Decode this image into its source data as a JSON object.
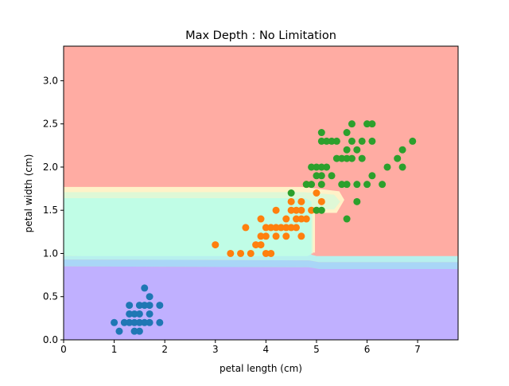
{
  "chart_data": {
    "type": "scatter",
    "title": "Max Depth : No Limitation",
    "xlabel": "petal length (cm)",
    "ylabel": "petal width (cm)",
    "xlim": [
      0,
      7.8
    ],
    "ylim": [
      0,
      3.4
    ],
    "xticks": [
      0,
      1,
      2,
      3,
      4,
      5,
      6,
      7
    ],
    "xtick_labels": [
      "0",
      "1",
      "2",
      "3",
      "4",
      "5",
      "6",
      "7"
    ],
    "yticks": [
      0,
      0.5,
      1.0,
      1.5,
      2.0,
      2.5,
      3.0
    ],
    "ytick_labels": [
      "0.0",
      "0.5",
      "1.0",
      "1.5",
      "2.0",
      "2.5",
      "3.0"
    ],
    "grid": false,
    "decision_regions": [
      {
        "class": 0,
        "color": "#c0b0ff",
        "description": "petal width below 0.85"
      },
      {
        "class": 1,
        "color": "#c0fde6",
        "description": "petal width 0.95-1.65, petal length below 4.9"
      },
      {
        "class": 2,
        "color": "#ffaca3",
        "description": "remaining area"
      }
    ],
    "series": [
      {
        "color": "#1f77b4",
        "points": [
          [
            1.0,
            0.2
          ],
          [
            1.1,
            0.1
          ],
          [
            1.2,
            0.2
          ],
          [
            1.3,
            0.2
          ],
          [
            1.3,
            0.3
          ],
          [
            1.3,
            0.4
          ],
          [
            1.4,
            0.1
          ],
          [
            1.4,
            0.2
          ],
          [
            1.4,
            0.3
          ],
          [
            1.5,
            0.1
          ],
          [
            1.5,
            0.2
          ],
          [
            1.5,
            0.3
          ],
          [
            1.5,
            0.4
          ],
          [
            1.6,
            0.2
          ],
          [
            1.6,
            0.4
          ],
          [
            1.6,
            0.6
          ],
          [
            1.7,
            0.2
          ],
          [
            1.7,
            0.3
          ],
          [
            1.7,
            0.4
          ],
          [
            1.7,
            0.5
          ],
          [
            1.9,
            0.2
          ],
          [
            1.9,
            0.4
          ]
        ]
      },
      {
        "color": "#ff7f0e",
        "points": [
          [
            3.0,
            1.1
          ],
          [
            3.3,
            1.0
          ],
          [
            3.5,
            1.0
          ],
          [
            3.6,
            1.3
          ],
          [
            3.7,
            1.0
          ],
          [
            3.8,
            1.1
          ],
          [
            3.9,
            1.1
          ],
          [
            3.9,
            1.2
          ],
          [
            3.9,
            1.4
          ],
          [
            4.0,
            1.0
          ],
          [
            4.0,
            1.2
          ],
          [
            4.0,
            1.3
          ],
          [
            4.1,
            1.0
          ],
          [
            4.1,
            1.3
          ],
          [
            4.2,
            1.2
          ],
          [
            4.2,
            1.3
          ],
          [
            4.2,
            1.5
          ],
          [
            4.3,
            1.3
          ],
          [
            4.4,
            1.2
          ],
          [
            4.4,
            1.3
          ],
          [
            4.4,
            1.4
          ],
          [
            4.5,
            1.3
          ],
          [
            4.5,
            1.5
          ],
          [
            4.5,
            1.6
          ],
          [
            4.6,
            1.3
          ],
          [
            4.6,
            1.4
          ],
          [
            4.6,
            1.5
          ],
          [
            4.7,
            1.2
          ],
          [
            4.7,
            1.4
          ],
          [
            4.7,
            1.5
          ],
          [
            4.7,
            1.6
          ],
          [
            4.8,
            1.4
          ],
          [
            4.8,
            1.8
          ],
          [
            4.9,
            1.5
          ],
          [
            5.0,
            1.7
          ],
          [
            5.1,
            1.6
          ]
        ]
      },
      {
        "color": "#2ca02c",
        "points": [
          [
            4.5,
            1.7
          ],
          [
            4.8,
            1.8
          ],
          [
            4.9,
            1.8
          ],
          [
            4.9,
            2.0
          ],
          [
            5.0,
            1.5
          ],
          [
            5.0,
            1.9
          ],
          [
            5.0,
            2.0
          ],
          [
            5.1,
            1.5
          ],
          [
            5.1,
            1.8
          ],
          [
            5.1,
            1.9
          ],
          [
            5.1,
            2.0
          ],
          [
            5.1,
            2.3
          ],
          [
            5.1,
            2.4
          ],
          [
            5.2,
            2.0
          ],
          [
            5.2,
            2.3
          ],
          [
            5.3,
            1.9
          ],
          [
            5.3,
            2.3
          ],
          [
            5.4,
            2.1
          ],
          [
            5.4,
            2.3
          ],
          [
            5.5,
            1.8
          ],
          [
            5.5,
            2.1
          ],
          [
            5.6,
            1.4
          ],
          [
            5.6,
            1.8
          ],
          [
            5.6,
            2.1
          ],
          [
            5.6,
            2.2
          ],
          [
            5.6,
            2.4
          ],
          [
            5.7,
            2.1
          ],
          [
            5.7,
            2.3
          ],
          [
            5.7,
            2.5
          ],
          [
            5.8,
            1.6
          ],
          [
            5.8,
            1.8
          ],
          [
            5.8,
            2.2
          ],
          [
            5.9,
            2.1
          ],
          [
            5.9,
            2.3
          ],
          [
            6.0,
            1.8
          ],
          [
            6.0,
            2.5
          ],
          [
            6.1,
            1.9
          ],
          [
            6.1,
            2.3
          ],
          [
            6.1,
            2.5
          ],
          [
            6.3,
            1.8
          ],
          [
            6.4,
            2.0
          ],
          [
            6.6,
            2.1
          ],
          [
            6.7,
            2.0
          ],
          [
            6.7,
            2.2
          ],
          [
            6.9,
            2.3
          ]
        ]
      }
    ]
  }
}
